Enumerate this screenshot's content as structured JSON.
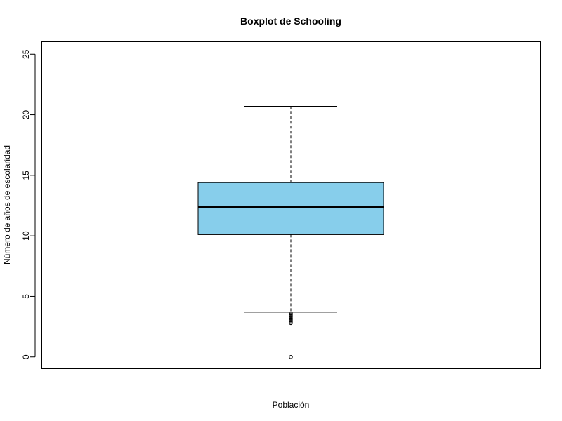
{
  "chart_data": {
    "type": "boxplot",
    "title": "Boxplot de Schooling",
    "xlabel": "Población",
    "ylabel": "Número de años de escolaridad",
    "ylim": [
      -1,
      26
    ],
    "y_ticks": [
      0,
      5,
      10,
      15,
      20,
      25
    ],
    "grid": false,
    "legend": "none",
    "box_fill": "#87CEEB",
    "box": {
      "whisker_low": 3.7,
      "q1": 10.1,
      "median": 12.4,
      "q3": 14.4,
      "whisker_high": 20.7,
      "outliers": [
        3.6,
        3.5,
        3.4,
        3.3,
        3.2,
        3.1,
        3.0,
        2.9,
        2.8,
        0
      ]
    }
  }
}
